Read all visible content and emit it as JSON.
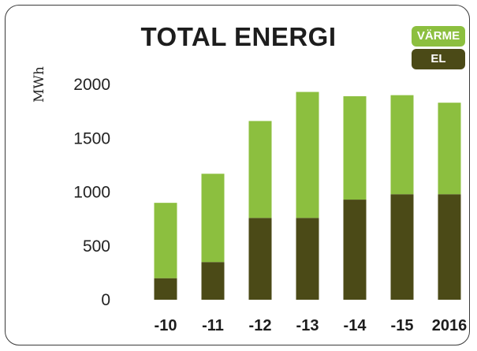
{
  "chart_data": {
    "type": "bar",
    "stacked": true,
    "title": "TOTAL ENERGI",
    "ylabel": "MWh",
    "xlabel": "",
    "categories": [
      "-10",
      "-11",
      "-12",
      "-13",
      "-14",
      "-15",
      "2016"
    ],
    "ylim": [
      0,
      2000
    ],
    "yticks": [
      0,
      500,
      1000,
      1500,
      2000
    ],
    "grid": false,
    "legend_position": "top-right",
    "series": [
      {
        "name": "EL",
        "color": "#4b4a17",
        "values": [
          200,
          350,
          760,
          760,
          930,
          980,
          980
        ]
      },
      {
        "name": "VÄRME",
        "color": "#8cbf3f",
        "values": [
          700,
          820,
          900,
          1170,
          960,
          920,
          850
        ]
      }
    ]
  }
}
